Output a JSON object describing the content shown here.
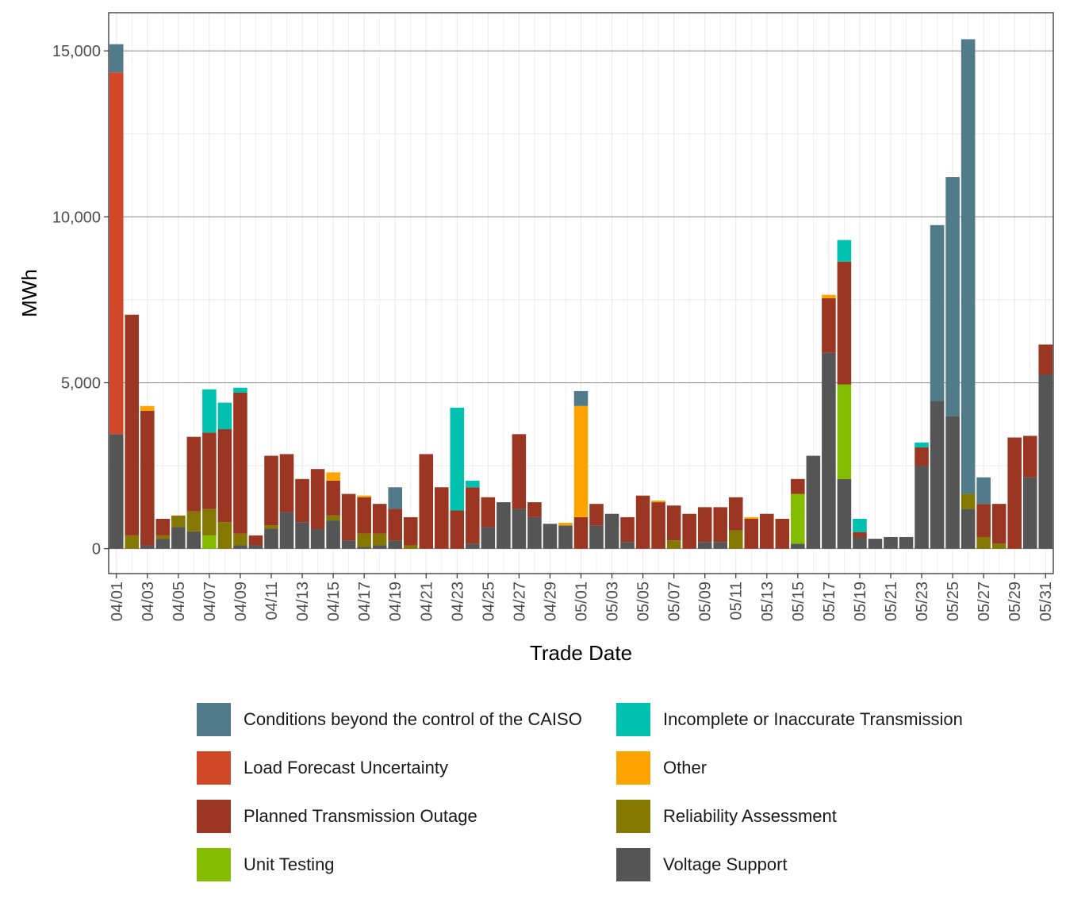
{
  "chart_data": {
    "type": "stacked-bar",
    "xlabel": "Trade Date",
    "ylabel": "MWh",
    "ylim": [
      -750,
      16150
    ],
    "yticks": [
      0,
      5000,
      10000,
      15000
    ],
    "ytick_labels": [
      "0",
      "5,000",
      "10,000",
      "15,000"
    ],
    "grid": true,
    "legend_position": "bottom",
    "categories": [
      "04/01",
      "04/02",
      "04/03",
      "04/04",
      "04/05",
      "04/06",
      "04/07",
      "04/08",
      "04/09",
      "04/10",
      "04/11",
      "04/12",
      "04/13",
      "04/14",
      "04/15",
      "04/16",
      "04/17",
      "04/18",
      "04/19",
      "04/20",
      "04/21",
      "04/22",
      "04/23",
      "04/24",
      "04/25",
      "04/26",
      "04/27",
      "04/28",
      "04/29",
      "04/30",
      "05/01",
      "05/02",
      "05/03",
      "05/04",
      "05/05",
      "05/06",
      "05/07",
      "05/08",
      "05/09",
      "05/10",
      "05/11",
      "05/12",
      "05/13",
      "05/14",
      "05/15",
      "05/16",
      "05/17",
      "05/18",
      "05/19",
      "05/20",
      "05/21",
      "05/22",
      "05/23",
      "05/24",
      "05/25",
      "05/26",
      "05/27",
      "05/28",
      "05/29",
      "05/30",
      "05/31"
    ],
    "x_tick_labels": [
      "04/01",
      "04/03",
      "04/05",
      "04/07",
      "04/09",
      "04/11",
      "04/13",
      "04/15",
      "04/17",
      "04/19",
      "04/21",
      "04/23",
      "04/25",
      "04/27",
      "04/29",
      "05/01",
      "05/03",
      "05/05",
      "05/07",
      "05/09",
      "05/11",
      "05/13",
      "05/15",
      "05/17",
      "05/19",
      "05/21",
      "05/23",
      "05/25",
      "05/27",
      "05/29",
      "05/31"
    ],
    "series": [
      {
        "name": "Voltage Support",
        "color": "#555555",
        "values": [
          3450,
          0,
          100,
          300,
          650,
          520,
          0,
          0,
          100,
          100,
          600,
          1100,
          800,
          600,
          850,
          250,
          50,
          100,
          250,
          0,
          0,
          0,
          0,
          150,
          650,
          1400,
          1200,
          950,
          750,
          700,
          0,
          700,
          1050,
          200,
          0,
          0,
          0,
          0,
          200,
          200,
          0,
          0,
          0,
          0,
          150,
          2800,
          5900,
          2100,
          350,
          300,
          350,
          350,
          2500,
          4450,
          4000,
          1200,
          0,
          0,
          0,
          2150,
          5250
        ]
      },
      {
        "name": "Unit Testing",
        "color": "#84bd00",
        "values": [
          0,
          0,
          0,
          0,
          0,
          0,
          400,
          0,
          0,
          0,
          0,
          0,
          0,
          0,
          0,
          0,
          0,
          0,
          0,
          0,
          0,
          0,
          0,
          0,
          0,
          0,
          0,
          0,
          0,
          0,
          0,
          0,
          0,
          0,
          0,
          0,
          0,
          0,
          0,
          0,
          0,
          0,
          0,
          0,
          1500,
          0,
          0,
          2850,
          0,
          0,
          0,
          0,
          0,
          0,
          0,
          0,
          0,
          0,
          0,
          0,
          0
        ]
      },
      {
        "name": "Reliability Assessment",
        "color": "#857800",
        "values": [
          0,
          400,
          0,
          100,
          350,
          600,
          800,
          800,
          350,
          0,
          100,
          0,
          0,
          0,
          150,
          0,
          400,
          350,
          0,
          100,
          0,
          0,
          0,
          0,
          0,
          0,
          0,
          0,
          0,
          0,
          0,
          0,
          0,
          0,
          0,
          0,
          250,
          0,
          0,
          0,
          550,
          0,
          0,
          0,
          0,
          0,
          0,
          0,
          0,
          0,
          0,
          0,
          0,
          0,
          0,
          450,
          350,
          150,
          0,
          0,
          0
        ]
      },
      {
        "name": "Planned Transmission Outage",
        "color": "#9b3622",
        "values": [
          0,
          6650,
          4050,
          500,
          0,
          2250,
          2300,
          2800,
          4250,
          300,
          2100,
          1750,
          1300,
          1800,
          1050,
          1400,
          1100,
          900,
          950,
          850,
          2850,
          1850,
          1150,
          1700,
          900,
          0,
          2250,
          450,
          0,
          0,
          950,
          650,
          0,
          750,
          1600,
          1400,
          1050,
          1050,
          1050,
          1050,
          1000,
          900,
          1050,
          900,
          450,
          0,
          1650,
          3700,
          150,
          0,
          0,
          0,
          550,
          0,
          0,
          0,
          1000,
          1200,
          3350,
          1250,
          900
        ]
      },
      {
        "name": "Load Forecast Uncertainty",
        "color": "#d04827",
        "values": [
          10900,
          0,
          0,
          0,
          0,
          0,
          0,
          0,
          0,
          0,
          0,
          0,
          0,
          0,
          0,
          0,
          0,
          0,
          0,
          0,
          0,
          0,
          0,
          0,
          0,
          0,
          0,
          0,
          0,
          0,
          0,
          0,
          0,
          0,
          0,
          0,
          0,
          0,
          0,
          0,
          0,
          0,
          0,
          0,
          0,
          0,
          0,
          0,
          0,
          0,
          0,
          0,
          0,
          0,
          0,
          0,
          0,
          0,
          0,
          0,
          0
        ]
      },
      {
        "name": "Other",
        "color": "#ffa300",
        "values": [
          0,
          0,
          150,
          0,
          0,
          0,
          0,
          0,
          0,
          0,
          0,
          0,
          0,
          0,
          250,
          0,
          50,
          0,
          0,
          0,
          0,
          0,
          0,
          0,
          0,
          0,
          0,
          0,
          0,
          80,
          3350,
          0,
          0,
          0,
          0,
          50,
          0,
          0,
          0,
          0,
          0,
          50,
          0,
          0,
          0,
          0,
          100,
          0,
          0,
          0,
          0,
          0,
          0,
          0,
          0,
          0,
          0,
          0,
          0,
          0,
          0
        ]
      },
      {
        "name": "Incomplete or Inaccurate Transmission",
        "color": "#00c1b0",
        "values": [
          0,
          0,
          0,
          0,
          0,
          0,
          1300,
          800,
          150,
          0,
          0,
          0,
          0,
          0,
          0,
          0,
          0,
          0,
          0,
          0,
          0,
          0,
          3100,
          200,
          0,
          0,
          0,
          0,
          0,
          0,
          0,
          0,
          0,
          0,
          0,
          0,
          0,
          0,
          0,
          0,
          0,
          0,
          0,
          0,
          0,
          0,
          0,
          650,
          400,
          0,
          0,
          0,
          150,
          0,
          0,
          0,
          0,
          0,
          0,
          0,
          0
        ]
      },
      {
        "name": "Conditions beyond the control of the CAISO",
        "color": "#517a8b",
        "values": [
          850,
          0,
          0,
          0,
          0,
          0,
          0,
          0,
          0,
          0,
          0,
          0,
          0,
          0,
          0,
          0,
          0,
          0,
          650,
          0,
          0,
          0,
          0,
          0,
          0,
          0,
          0,
          0,
          0,
          0,
          450,
          0,
          0,
          0,
          0,
          0,
          0,
          0,
          0,
          0,
          0,
          0,
          0,
          0,
          0,
          0,
          0,
          0,
          0,
          0,
          0,
          0,
          0,
          5300,
          7200,
          13700,
          800,
          0,
          0,
          0,
          0
        ]
      }
    ]
  },
  "legend": {
    "items": [
      {
        "label": "Conditions beyond the control of the CAISO",
        "color": "#517a8b"
      },
      {
        "label": "Incomplete or Inaccurate Transmission",
        "color": "#00c1b0"
      },
      {
        "label": "Load Forecast Uncertainty",
        "color": "#d04827"
      },
      {
        "label": "Other",
        "color": "#ffa300"
      },
      {
        "label": "Planned Transmission Outage",
        "color": "#9b3622"
      },
      {
        "label": "Reliability Assessment",
        "color": "#857800"
      },
      {
        "label": "Unit Testing",
        "color": "#84bd00"
      },
      {
        "label": "Voltage Support",
        "color": "#555555"
      }
    ]
  }
}
